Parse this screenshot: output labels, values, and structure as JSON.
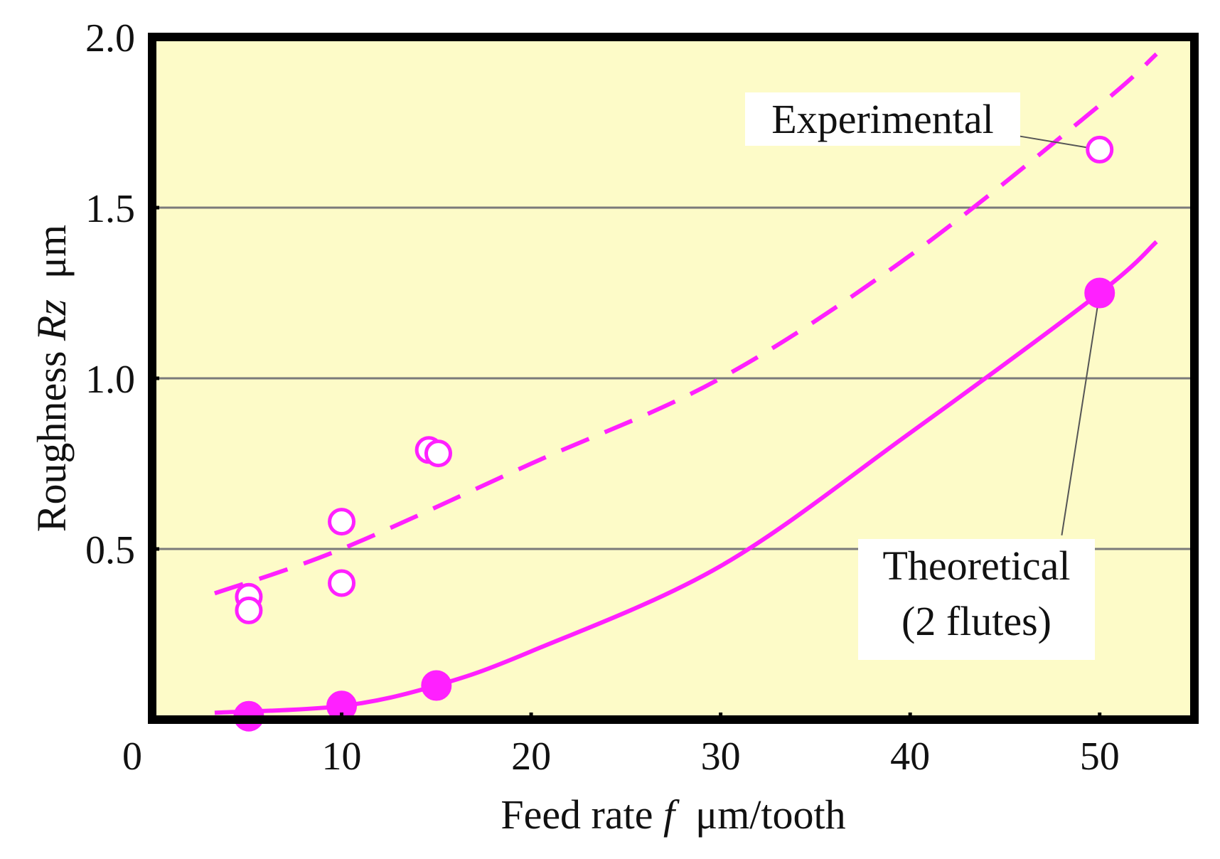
{
  "colors": {
    "plot_background": "#fdfbc8",
    "series": "#ff20ff",
    "grid": "#7a7a7a",
    "frame": "#000000",
    "leader": "#555555"
  },
  "chart_data": {
    "type": "scatter",
    "xlabel": {
      "prefix": "Feed rate ",
      "symbol": "f",
      "suffix": "  μm/tooth"
    },
    "ylabel": {
      "prefix": "Roughness ",
      "symbol": "Rz",
      "suffix": "  μm"
    },
    "xlim": [
      0,
      55
    ],
    "ylim": [
      0,
      2.0
    ],
    "x_ticks": [
      0,
      10,
      20,
      30,
      40,
      50
    ],
    "x_tick_labels": [
      "0",
      "10",
      "20",
      "30",
      "40",
      "50"
    ],
    "y_ticks": [
      0.5,
      1.0,
      1.5,
      2.0
    ],
    "y_tick_labels": [
      "0.5",
      "1.0",
      "1.5",
      "2.0"
    ],
    "grid": {
      "horizontal": [
        0.5,
        1.0,
        1.5
      ],
      "vertical": false
    },
    "series": [
      {
        "marker": "open-circle",
        "line": "dashed",
        "points": [
          {
            "x": 5.1,
            "y": 0.36
          },
          {
            "x": 5.1,
            "y": 0.32
          },
          {
            "x": 10.0,
            "y": 0.58
          },
          {
            "x": 10.0,
            "y": 0.4
          },
          {
            "x": 14.6,
            "y": 0.79
          },
          {
            "x": 15.1,
            "y": 0.78
          },
          {
            "x": 50.0,
            "y": 1.67
          }
        ],
        "curve": [
          {
            "x": 3.3,
            "y": 0.37
          },
          {
            "x": 10.0,
            "y": 0.5
          },
          {
            "x": 20.0,
            "y": 0.75
          },
          {
            "x": 30.0,
            "y": 1.0
          },
          {
            "x": 40.0,
            "y": 1.36
          },
          {
            "x": 50.0,
            "y": 1.8
          },
          {
            "x": 53.0,
            "y": 1.95
          }
        ]
      },
      {
        "marker": "filled-circle",
        "line": "solid",
        "points": [
          {
            "x": 5.1,
            "y": 0.01
          },
          {
            "x": 10.0,
            "y": 0.04
          },
          {
            "x": 15.0,
            "y": 0.1
          },
          {
            "x": 50.0,
            "y": 1.25
          }
        ],
        "curve": [
          {
            "x": 3.3,
            "y": 0.02
          },
          {
            "x": 10.0,
            "y": 0.04
          },
          {
            "x": 15.0,
            "y": 0.1
          },
          {
            "x": 20.0,
            "y": 0.2
          },
          {
            "x": 30.0,
            "y": 0.45
          },
          {
            "x": 40.0,
            "y": 0.84
          },
          {
            "x": 50.0,
            "y": 1.25
          },
          {
            "x": 53.0,
            "y": 1.4
          }
        ]
      }
    ],
    "annotations": [
      {
        "lines": [
          "Experimental"
        ],
        "target": {
          "x": 50.0,
          "y": 1.67
        },
        "anchor": {
          "x": 45.7,
          "y": 1.71
        }
      },
      {
        "lines": [
          "Theoretical",
          "(2 flutes)"
        ],
        "target": {
          "x": 50.0,
          "y": 1.25
        },
        "anchor": {
          "x": 48.0,
          "y": 0.54
        }
      }
    ]
  }
}
